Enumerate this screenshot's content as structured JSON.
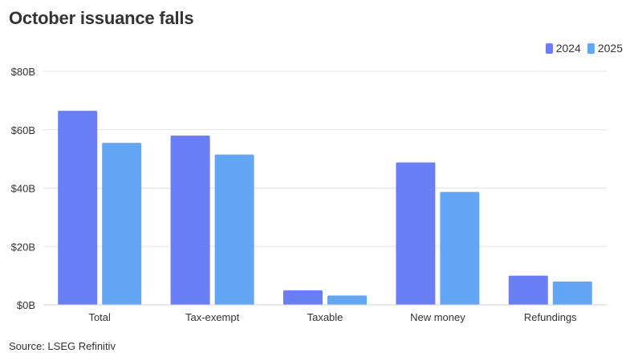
{
  "chart_data": {
    "type": "bar",
    "title": "October issuance falls",
    "categories": [
      "Total",
      "Tax-exempt",
      "Taxable",
      "New money",
      "Refundings"
    ],
    "series": [
      {
        "name": "2024",
        "color": "#6a7ff5",
        "values": [
          66.5,
          58.0,
          5.0,
          48.8,
          10.0
        ]
      },
      {
        "name": "2025",
        "color": "#63a6f5",
        "values": [
          55.5,
          51.5,
          3.2,
          38.7,
          8.0
        ]
      }
    ],
    "ylim": [
      0,
      80
    ],
    "yticks": [
      {
        "value": 0,
        "label": "$0B"
      },
      {
        "value": 20,
        "label": "$20B"
      },
      {
        "value": 40,
        "label": "$40B"
      },
      {
        "value": 60,
        "label": "$60B"
      },
      {
        "value": 80,
        "label": "$80B"
      }
    ],
    "grid": true,
    "legend_position": "top-right",
    "source": "Source: LSEG Refinitiv"
  }
}
